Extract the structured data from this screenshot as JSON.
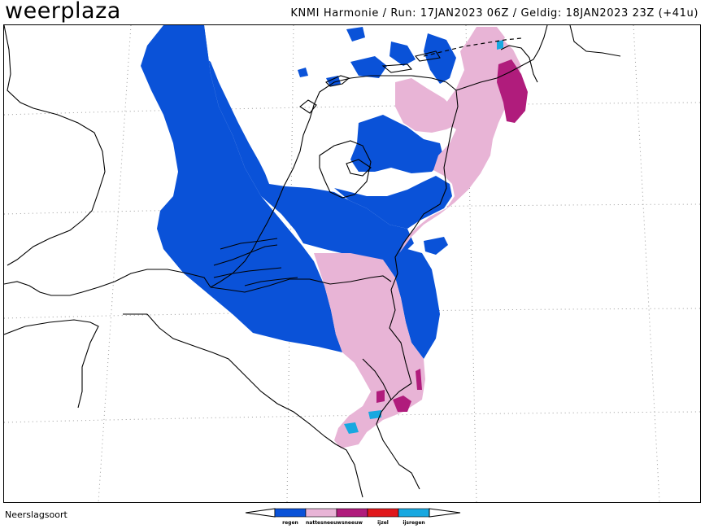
{
  "header": {
    "brand_light": "weer",
    "brand_strong": "plaza",
    "run_info": "KNMI Harmonie / Run: 17JAN2023 06Z / Geldig: 18JAN2023 23Z (+41u)"
  },
  "footer": {
    "label": "Neerslagsoort"
  },
  "legend": {
    "items": [
      {
        "label": "regen",
        "color": "#0a52d8"
      },
      {
        "label": "nattesneeuw",
        "color": "#e8b4d6"
      },
      {
        "label": "sneeuw",
        "color": "#b01c7c"
      },
      {
        "label": "ijzel",
        "color": "#e0181c"
      },
      {
        "label": "ijsregen",
        "color": "#18a8e0"
      }
    ]
  },
  "colors": {
    "regen": "#0a52d8",
    "nattesneeuw": "#e8b4d6",
    "sneeuw": "#b01c7c",
    "ijsregen": "#18a8e0",
    "border": "#000000",
    "graticule": "#9a9a9a"
  }
}
